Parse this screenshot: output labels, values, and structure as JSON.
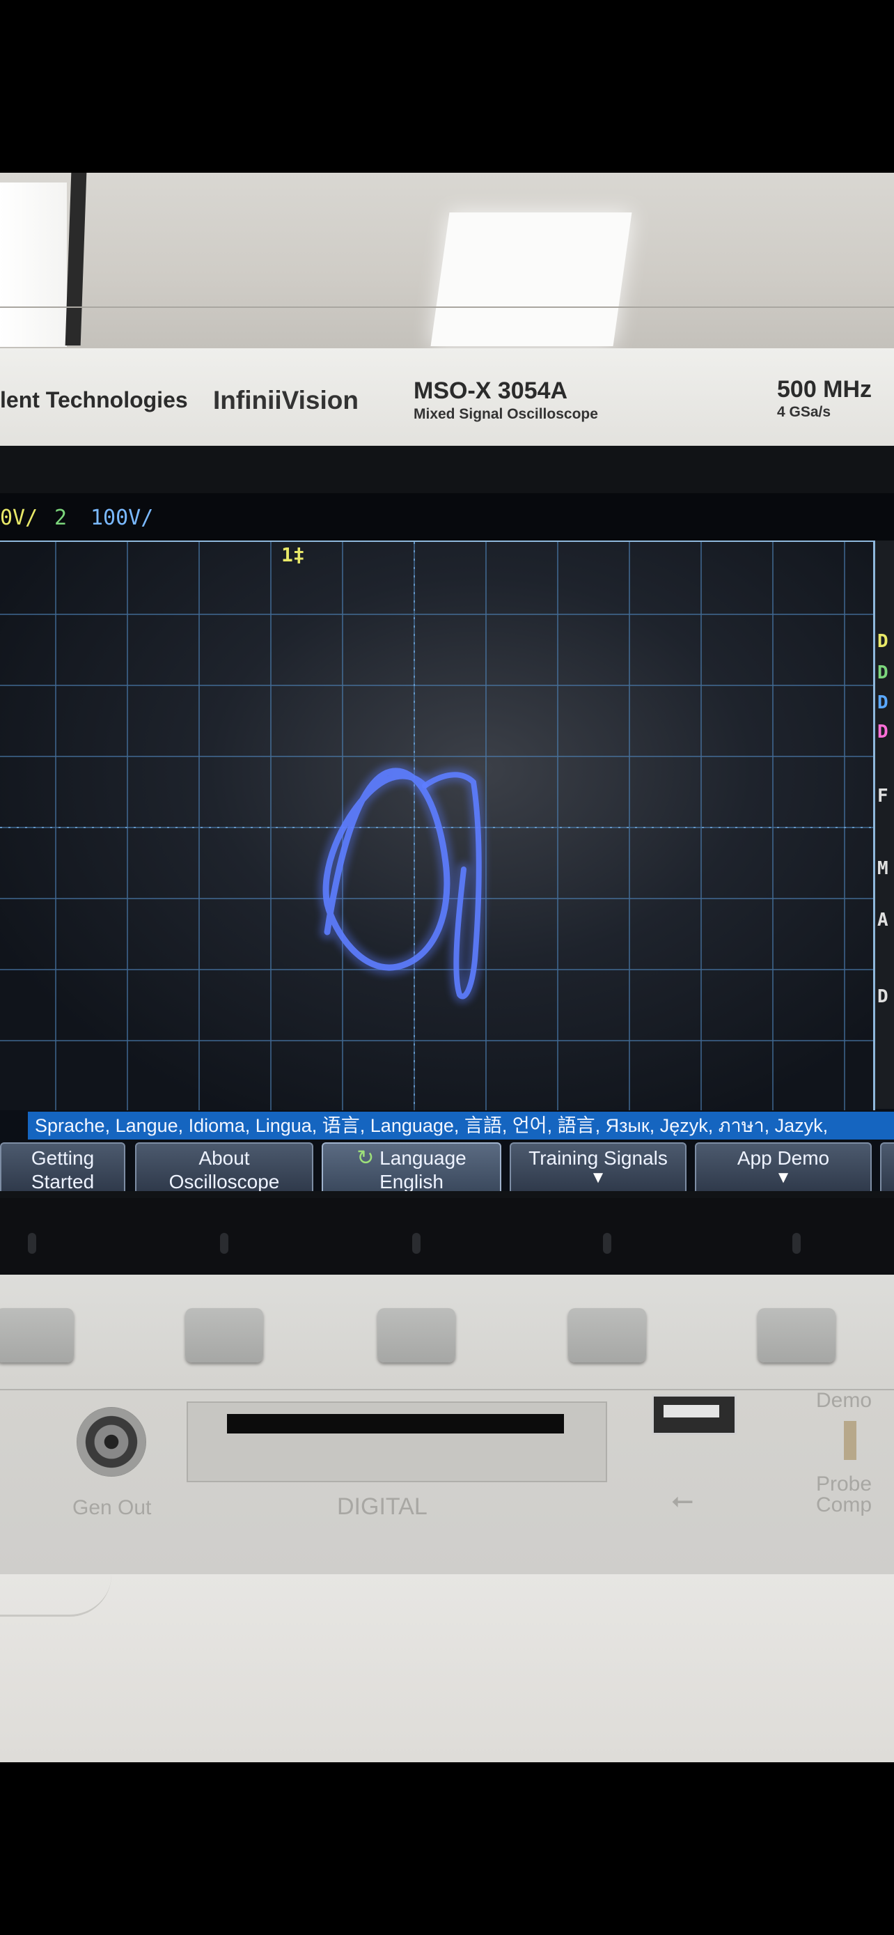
{
  "bezel": {
    "brand_left": "lent Technologies",
    "series": "InfiniiVision",
    "model": "MSO-X 3054A",
    "model_subtitle": "Mixed Signal Oscilloscope",
    "bandwidth": "500 MHz",
    "sample_rate": "4 GSa/s"
  },
  "status_bar": {
    "ch1_scale": "0V/",
    "ch2_label": "2",
    "ch2_scale": "100V/"
  },
  "trigger_marker": "1‡",
  "side_panel": {
    "labels": [
      {
        "text": "D",
        "color": "#e8e868"
      },
      {
        "text": "D",
        "color": "#7cd67c"
      },
      {
        "text": "D",
        "color": "#5aa8ff"
      },
      {
        "text": "D",
        "color": "#ff6fd8"
      },
      {
        "text": "F",
        "color": "#e0e0e0"
      },
      {
        "text": "M",
        "color": "#e0e0e0"
      },
      {
        "text": "A",
        "color": "#e0e0e0"
      },
      {
        "text": "D",
        "color": "#e0e0e0"
      }
    ]
  },
  "language_strip": "Sprache, Langue, Idioma, Lingua, 语言, Language, 言語, 언어, 語言, Язык, Język, ภาษา, Jazyk,",
  "softkeys": {
    "getting_started_l1": "Getting",
    "getting_started_l2": "Started",
    "about_l1": "About",
    "about_l2": "Oscilloscope",
    "language_l1": "Language",
    "language_l2": "English",
    "training": "Training Signals",
    "app_demo": "App Demo"
  },
  "front_labels": {
    "gen_out": "Gen  Out",
    "digital": "DIGITAL",
    "demo": "Demo",
    "probe_comp_1": "Probe",
    "probe_comp_2": "Comp"
  },
  "colors": {
    "trace": "#5d7dff",
    "grid": "#4f83b8",
    "softkey_bg": "#3a475b",
    "language_strip_bg": "#1565c0"
  },
  "icons": {
    "language_softkey": "rotate-arrow-icon",
    "training_softkey": "down-arrow-icon",
    "app_demo_softkey": "down-arrow-icon"
  }
}
